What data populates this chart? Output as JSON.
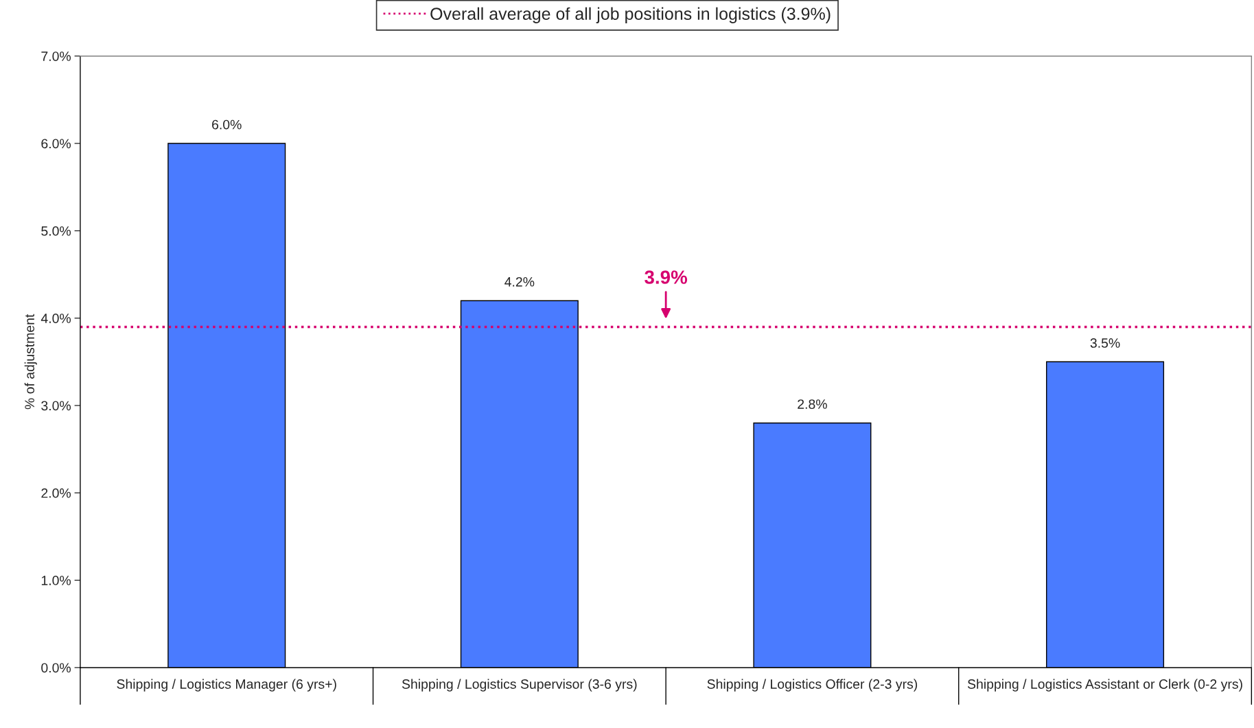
{
  "chart_data": {
    "type": "bar",
    "ylabel": "% of adjustment",
    "categories": [
      "Shipping / Logistics Manager (6 yrs+)",
      "Shipping / Logistics Supervisor (3-6 yrs)",
      "Shipping / Logistics Officer (2-3 yrs)",
      "Shipping / Logistics Assistant or Clerk (0-2 yrs)"
    ],
    "values": [
      6.0,
      4.2,
      2.8,
      3.5
    ],
    "value_labels": [
      "6.0%",
      "4.2%",
      "2.8%",
      "3.5%"
    ],
    "color": "#4a7bff",
    "ylim": [
      0,
      7
    ],
    "yticks": [
      {
        "value": 0,
        "label": "0.0%"
      },
      {
        "value": 1,
        "label": "1.0%"
      },
      {
        "value": 2,
        "label": "2.0%"
      },
      {
        "value": 3,
        "label": "3.0%"
      },
      {
        "value": 4,
        "label": "4.0%"
      },
      {
        "value": 5,
        "label": "5.0%"
      },
      {
        "value": 6,
        "label": "6.0%"
      },
      {
        "value": 7,
        "label": "7.0%"
      }
    ],
    "ref_lines": [
      {
        "axis": "y",
        "value": 3.9,
        "label": "Overall average of all job positions in logistics (3.9%)",
        "color": "#d6006e",
        "line_style": "dotted"
      }
    ],
    "annotations": [
      {
        "text": "3.9%",
        "y": 3.9
      }
    ],
    "legend": "top",
    "grid": false
  }
}
